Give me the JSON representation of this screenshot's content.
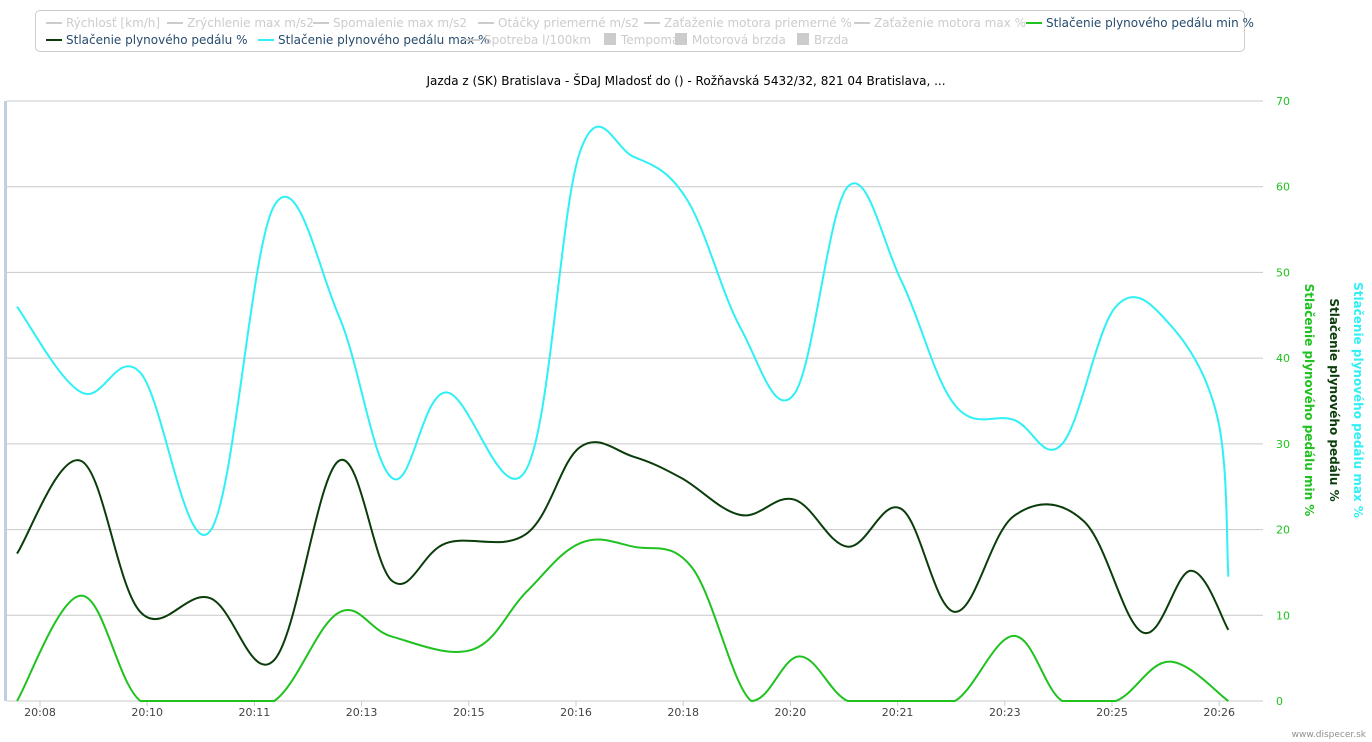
{
  "legend": {
    "items": [
      {
        "label": "Rýchlosť [km/h]",
        "state": "hidden",
        "symbol": "line",
        "color": "#cccccc"
      },
      {
        "label": "Zrýchlenie max m/s2",
        "state": "hidden",
        "symbol": "line",
        "color": "#cccccc"
      },
      {
        "label": "Spomalenie max m/s2",
        "state": "hidden",
        "symbol": "line",
        "color": "#cccccc"
      },
      {
        "label": "Otáčky priemerné m/s2",
        "state": "hidden",
        "symbol": "line",
        "color": "#cccccc"
      },
      {
        "label": "Zaťaženie motora priemerné %",
        "state": "hidden",
        "symbol": "line",
        "color": "#cccccc"
      },
      {
        "label": "Zaťaženie motora max %",
        "state": "hidden",
        "symbol": "line",
        "color": "#cccccc"
      },
      {
        "label": "Stlačenie plynového pedálu min %",
        "state": "shown",
        "symbol": "line",
        "color": "#1fc21f"
      },
      {
        "label": "Stlačenie plynového pedálu %",
        "state": "shown",
        "symbol": "line",
        "color": "#0b3d0b"
      },
      {
        "label": "Stlačenie plynového pedálu max %",
        "state": "shown",
        "symbol": "line",
        "color": "#2ff0f5"
      },
      {
        "label": "Spotreba l/100km",
        "state": "hidden",
        "symbol": "line",
        "color": "#cccccc"
      },
      {
        "label": "Tempomat",
        "state": "hidden",
        "symbol": "box",
        "color": "#cccccc"
      },
      {
        "label": "Motorová brzda",
        "state": "hidden",
        "symbol": "box",
        "color": "#cccccc"
      },
      {
        "label": "Brzda",
        "state": "hidden",
        "symbol": "box",
        "color": "#cccccc"
      }
    ]
  },
  "credit": "www.dispecer.sk",
  "chart_data": {
    "type": "line",
    "title": "Jazda z (SK) Bratislava - ŠDaJ Mladosť do () - Rožňavská 5432/32, 821 04 Bratislava, ...",
    "categories": [
      "20:08",
      "20:10",
      "20:11",
      "20:13",
      "20:15",
      "20:16",
      "20:18",
      "20:20",
      "20:21",
      "20:23",
      "20:25",
      "20:26"
    ],
    "x_ticks": [
      "20:08",
      "20:10",
      "20:11",
      "20:13",
      "20:15",
      "20:16",
      "20:18",
      "20:20",
      "20:21",
      "20:23",
      "20:25",
      "20:26"
    ],
    "ylim": [
      0,
      70
    ],
    "y_ticks": [
      0,
      10,
      20,
      30,
      40,
      50,
      60,
      70
    ],
    "grid": true,
    "axis_titles": [
      {
        "text": "Stlačenie plynového pedálu min %",
        "color": "#1fc21f"
      },
      {
        "text": "Stlačenie plynového pedálu %",
        "color": "#0b3d0b"
      },
      {
        "text": "Stlačenie plynového pedálu max %",
        "color": "#2ff0f5"
      }
    ],
    "series": [
      {
        "name": "Stlačenie plynového pedálu min %",
        "color": "#1fc21f",
        "x": [
          0.0,
          0.6,
          1.15,
          1.8,
          2.4,
          3.0,
          3.5,
          4.25,
          4.75,
          5.25,
          5.75,
          6.3,
          6.85,
          7.3,
          7.75,
          8.25,
          8.75,
          9.3,
          9.75,
          10.25,
          10.75,
          11.3
        ],
        "values": [
          0,
          12.3,
          0,
          0,
          0,
          10.3,
          7.5,
          6.0,
          12.7,
          18.4,
          18.0,
          15.5,
          0,
          5.2,
          0,
          0,
          0,
          7.6,
          0,
          0,
          4.6,
          0
        ]
      },
      {
        "name": "Stlačenie plynového pedálu %",
        "color": "#0b3d0b",
        "x": [
          0.0,
          0.6,
          1.15,
          1.8,
          2.4,
          3.0,
          3.5,
          4.0,
          4.75,
          5.25,
          5.75,
          6.2,
          6.75,
          7.25,
          7.75,
          8.25,
          8.75,
          9.3,
          9.95,
          10.5,
          10.95,
          11.3
        ],
        "values": [
          17.2,
          28.0,
          10.4,
          12.0,
          4.8,
          28.0,
          14.0,
          18.4,
          19.5,
          29.6,
          28.5,
          26.0,
          21.7,
          23.5,
          18.0,
          22.4,
          10.4,
          21.6,
          21.0,
          8.0,
          15.2,
          8.3
        ]
      },
      {
        "name": "Stlačenie plynového pedálu max %",
        "color": "#2ff0f5",
        "x": [
          0.0,
          0.6,
          1.15,
          1.8,
          2.4,
          3.0,
          3.5,
          4.0,
          4.75,
          5.25,
          5.75,
          6.25,
          6.75,
          7.25,
          7.75,
          8.25,
          8.75,
          9.3,
          9.75,
          10.25,
          10.75,
          11.2,
          11.3
        ],
        "values": [
          46.0,
          36.0,
          38.3,
          19.8,
          57.8,
          45.0,
          26.0,
          36.0,
          27.0,
          64.0,
          63.5,
          58.5,
          43.5,
          35.8,
          60.0,
          49.0,
          34.5,
          32.8,
          30.0,
          46.0,
          44.0,
          33.0,
          14.5
        ]
      }
    ]
  }
}
